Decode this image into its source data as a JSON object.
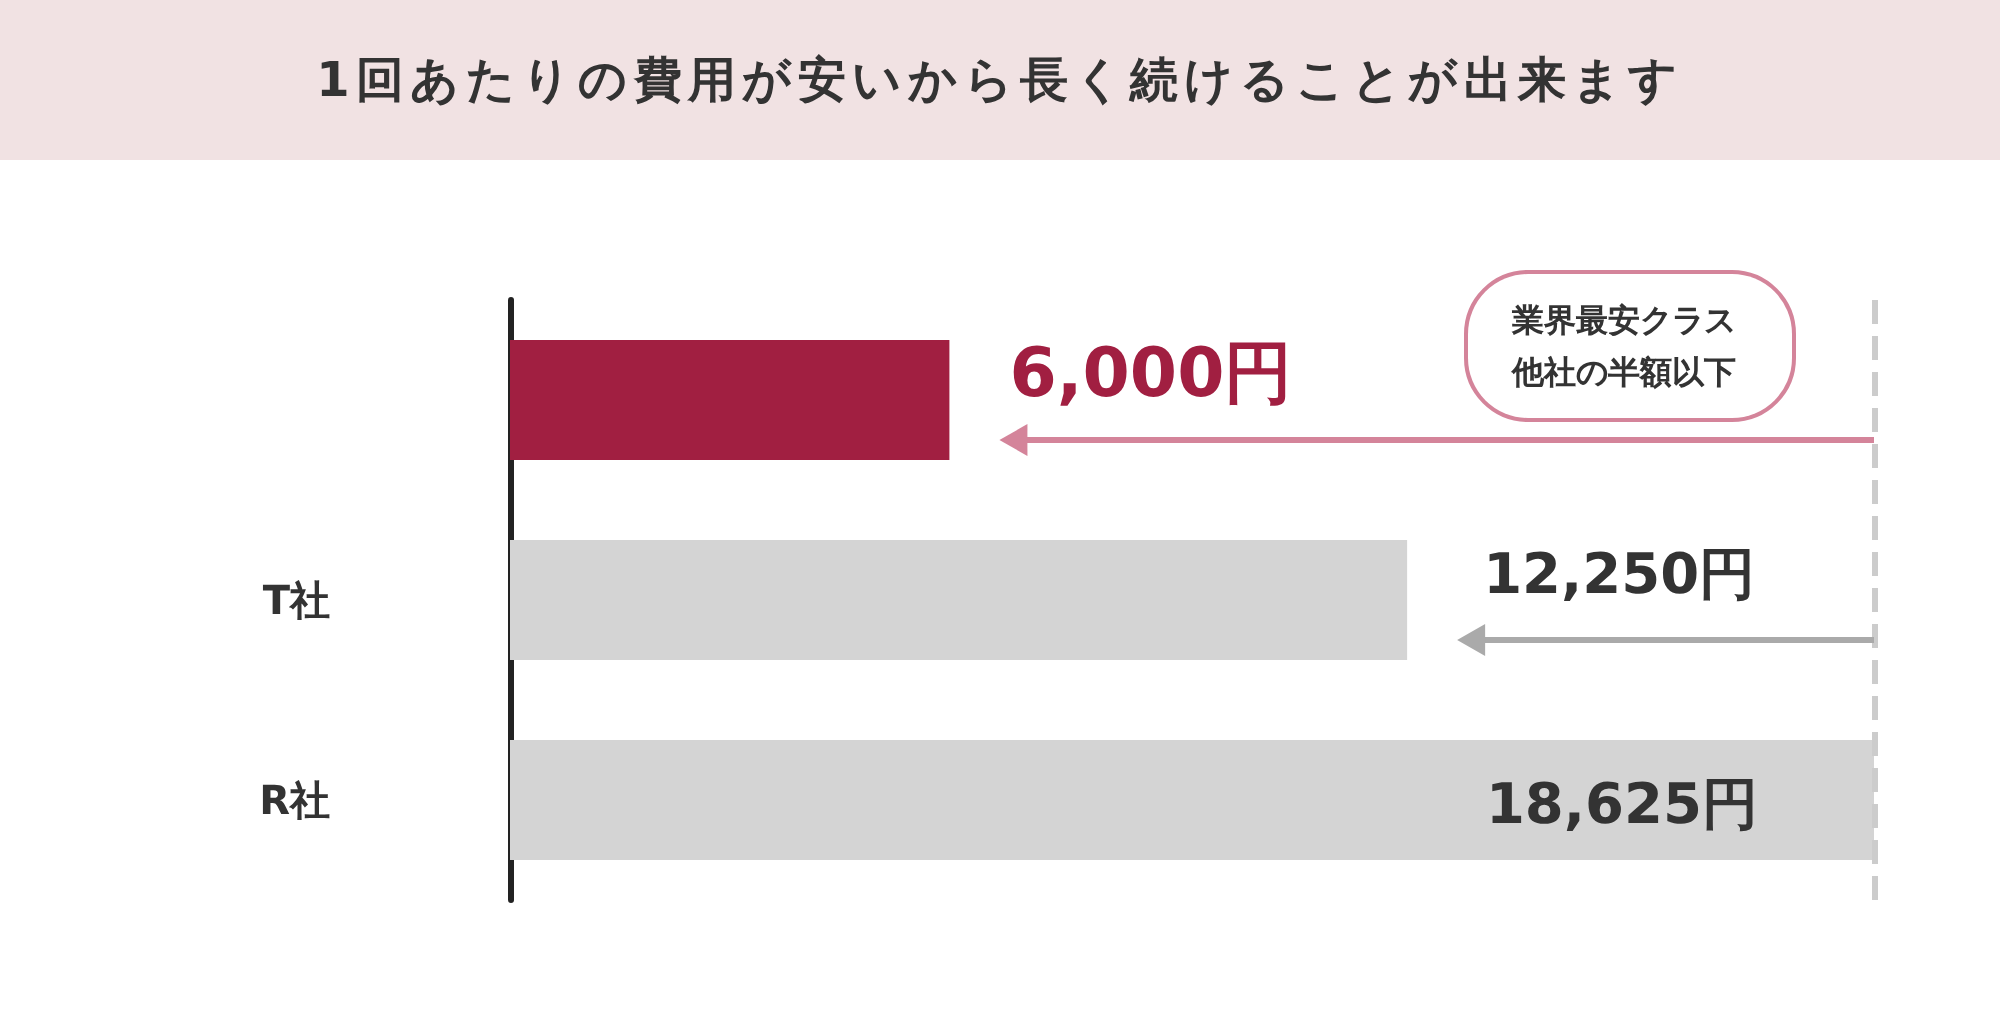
{
  "chart_data": {
    "type": "bar",
    "orientation": "horizontal",
    "title": "1回あたりの費用が安いから長く続けることが出来ます",
    "categories": [
      null,
      "T社",
      "R社"
    ],
    "values": [
      6000,
      12250,
      18625
    ],
    "colors": [
      "#a11f41",
      "#d4d4d4",
      "#d4d4d4"
    ],
    "value_labels": [
      "6,000円",
      "12,250円",
      "18,625円"
    ],
    "xlim": [
      0,
      18625
    ],
    "tick_labels": "y",
    "grid": false,
    "ref_lines": [
      {
        "axis": "x",
        "value": 18625,
        "color": "#cccccc",
        "line_style": "dashed"
      }
    ],
    "annotations": [
      "業界最安クラス他社の半額以下"
    ]
  }
}
